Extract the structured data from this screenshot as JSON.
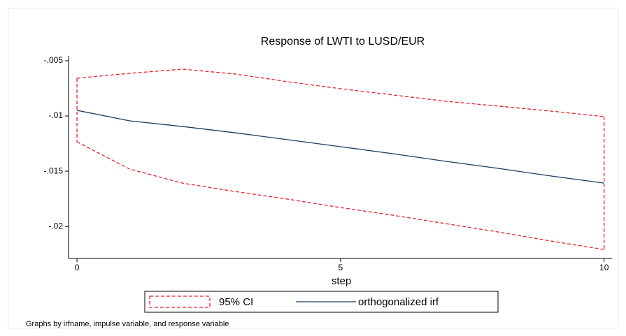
{
  "chart_data": {
    "type": "line",
    "title": "Response of LWTI to LUSD/EUR",
    "x_label": "step",
    "note": "Graphs by irfname, impulse variable, and response variable",
    "x": [
      0,
      1,
      2,
      3,
      4,
      5,
      6,
      7,
      8,
      9,
      10
    ],
    "series": [
      {
        "name": "95% CI",
        "color": "#e8212b",
        "dashed": true,
        "upper": [
          -0.00658,
          -0.00614,
          -0.00576,
          -0.0062,
          -0.0069,
          -0.00753,
          -0.0081,
          -0.00867,
          -0.00911,
          -0.00956,
          -0.01006
        ],
        "lower": [
          -0.01234,
          -0.01481,
          -0.01608,
          -0.01684,
          -0.01753,
          -0.01829,
          -0.01899,
          -0.01975,
          -0.02051,
          -0.02133,
          -0.02209
        ]
      },
      {
        "name": "orthogonalized irf",
        "color": "#1a3d5e",
        "values": [
          -0.00949,
          -0.01044,
          -0.01095,
          -0.01152,
          -0.01215,
          -0.01278,
          -0.01342,
          -0.01411,
          -0.01475,
          -0.01544,
          -0.01608
        ]
      }
    ],
    "xlim": [
      -0.16,
      10.15
    ],
    "xticks": [
      0,
      5,
      10
    ],
    "ylim": [
      -0.0229,
      -0.00456
    ],
    "yticks": [
      {
        "value": -0.02,
        "label": "-.02"
      },
      {
        "value": -0.015,
        "label": "-.015"
      },
      {
        "value": -0.01,
        "label": "-.01"
      },
      {
        "value": -0.005,
        "label": "-.005"
      }
    ]
  }
}
